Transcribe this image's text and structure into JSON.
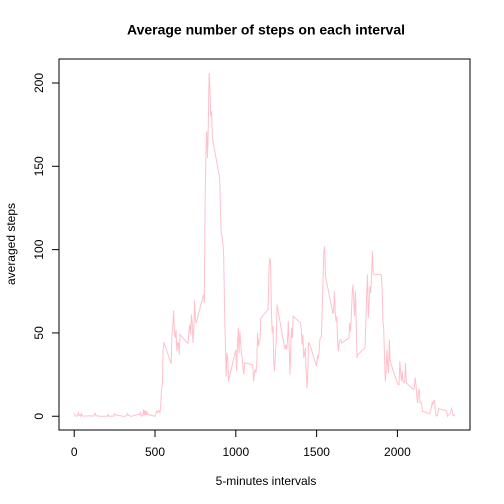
{
  "chart_data": {
    "type": "line",
    "title": "Average number of steps on each interval",
    "x_label": "5-minutes intervals",
    "y_label": "averaged steps",
    "color": "#ffc0cb",
    "x": [
      0,
      5,
      10,
      15,
      20,
      25,
      30,
      35,
      40,
      45,
      50,
      55,
      100,
      105,
      110,
      115,
      120,
      125,
      130,
      135,
      140,
      145,
      150,
      155,
      200,
      205,
      210,
      215,
      220,
      225,
      230,
      235,
      240,
      245,
      250,
      255,
      300,
      305,
      310,
      315,
      320,
      325,
      330,
      335,
      340,
      345,
      350,
      355,
      400,
      405,
      410,
      415,
      420,
      425,
      430,
      435,
      440,
      445,
      450,
      455,
      500,
      505,
      510,
      515,
      520,
      525,
      530,
      535,
      540,
      545,
      550,
      555,
      600,
      605,
      610,
      615,
      620,
      625,
      630,
      635,
      640,
      645,
      650,
      655,
      700,
      705,
      710,
      715,
      720,
      725,
      730,
      735,
      740,
      745,
      750,
      755,
      800,
      805,
      810,
      815,
      820,
      825,
      830,
      835,
      840,
      845,
      850,
      855,
      900,
      905,
      910,
      915,
      920,
      925,
      930,
      935,
      940,
      945,
      950,
      955,
      1000,
      1005,
      1010,
      1015,
      1020,
      1025,
      1030,
      1035,
      1040,
      1045,
      1050,
      1055,
      1100,
      1105,
      1110,
      1115,
      1120,
      1125,
      1130,
      1135,
      1140,
      1145,
      1150,
      1155,
      1200,
      1205,
      1210,
      1215,
      1220,
      1225,
      1230,
      1235,
      1240,
      1245,
      1250,
      1255,
      1300,
      1305,
      1310,
      1315,
      1320,
      1325,
      1330,
      1335,
      1340,
      1345,
      1350,
      1355,
      1400,
      1405,
      1410,
      1415,
      1420,
      1425,
      1430,
      1435,
      1440,
      1445,
      1450,
      1455,
      1500,
      1505,
      1510,
      1515,
      1520,
      1525,
      1530,
      1535,
      1540,
      1545,
      1550,
      1555,
      1600,
      1605,
      1610,
      1615,
      1620,
      1625,
      1630,
      1635,
      1640,
      1645,
      1650,
      1655,
      1700,
      1705,
      1710,
      1715,
      1720,
      1725,
      1730,
      1735,
      1740,
      1745,
      1750,
      1755,
      1800,
      1805,
      1810,
      1815,
      1820,
      1825,
      1830,
      1835,
      1840,
      1845,
      1850,
      1855,
      1900,
      1905,
      1910,
      1915,
      1920,
      1925,
      1930,
      1935,
      1940,
      1945,
      1950,
      1955,
      2000,
      2005,
      2010,
      2015,
      2020,
      2025,
      2030,
      2035,
      2040,
      2045,
      2050,
      2055,
      2100,
      2105,
      2110,
      2115,
      2120,
      2125,
      2130,
      2135,
      2140,
      2145,
      2150,
      2155,
      2200,
      2205,
      2210,
      2215,
      2220,
      2225,
      2230,
      2235,
      2240,
      2245,
      2250,
      2255,
      2300,
      2305,
      2310,
      2315,
      2320,
      2325,
      2330,
      2335,
      2340,
      2345,
      2350,
      2355
    ],
    "values": [
      1.7,
      0.3,
      0.1,
      0.2,
      0.1,
      2.1,
      0.5,
      0.9,
      0,
      1.5,
      0.3,
      0.1,
      0.3,
      0,
      0.2,
      0.3,
      0,
      1.1,
      1.8,
      0.2,
      0.2,
      0.3,
      0.3,
      0,
      0,
      0,
      1.1,
      0,
      0,
      0.1,
      0,
      0.2,
      0,
      0,
      1.5,
      0.9,
      0,
      0,
      0,
      0,
      0.2,
      0.6,
      1.6,
      0.6,
      0.5,
      0.1,
      0,
      0,
      1.2,
      0.9,
      2.6,
      0,
      0.3,
      0.4,
      4.1,
      0.7,
      3.5,
      0.8,
      3.1,
      1.1,
      0,
      1.6,
      3,
      2.2,
      3.3,
      3,
      2.1,
      6,
      16,
      18.3,
      39.5,
      44.5,
      31.5,
      49.3,
      53.8,
      63.5,
      50,
      47,
      52,
      39,
      44,
      44,
      37,
      49,
      44,
      44,
      51,
      55,
      49,
      61,
      56,
      44,
      52,
      69.5,
      58,
      56,
      73,
      68,
      129,
      158,
      171,
      155,
      177,
      206,
      196,
      180,
      183,
      167,
      143,
      124,
      109,
      108,
      104,
      96,
      66,
      45,
      24,
      38,
      35,
      21,
      40,
      27,
      42,
      53,
      38,
      51,
      44,
      37,
      35,
      28,
      25,
      32,
      31,
      30,
      21,
      26,
      28,
      26,
      33,
      50,
      42,
      45,
      46,
      59,
      64,
      88,
      95,
      93,
      63,
      50,
      54,
      32,
      27,
      38,
      45,
      67,
      42,
      40,
      43,
      40,
      46,
      57,
      42,
      25,
      40,
      53,
      47,
      60,
      56,
      52,
      43,
      49,
      35,
      37,
      41,
      27,
      17,
      26,
      44,
      44,
      30,
      36,
      35,
      38,
      46,
      47,
      48,
      65,
      83,
      99,
      102,
      84,
      62,
      62,
      75,
      63,
      57,
      60,
      44,
      39,
      45,
      46,
      46,
      44,
      47,
      56,
      51,
      61,
      73,
      79,
      69,
      60,
      75,
      57,
      35,
      37,
      41,
      58,
      74,
      85,
      59,
      68,
      78,
      74,
      85,
      99,
      86,
      85,
      85,
      78,
      58,
      53,
      36,
      21,
      27,
      40,
      30,
      26,
      46,
      33,
      20,
      19,
      19,
      33,
      27,
      21,
      27,
      21,
      20,
      21,
      32,
      20,
      16,
      17,
      23,
      19,
      12,
      8,
      15,
      16,
      8,
      8,
      8,
      3,
      1.5,
      3.7,
      4.8,
      8.5,
      7.1,
      8.7,
      9.8,
      2.2,
      0.3,
      0.1,
      1.6,
      4.6,
      3.3,
      2.8,
      0,
      0.8,
      1,
      1.6,
      2.6,
      4.7,
      3.3,
      0.6,
      0.2,
      1.1
    ],
    "xlim": [
      -94.2,
      2449.2
    ],
    "ylim": [
      -8.25,
      214.4
    ],
    "xticks": [
      0,
      500,
      1000,
      1500,
      2000
    ],
    "yticks": [
      0,
      50,
      100,
      150,
      200
    ]
  }
}
